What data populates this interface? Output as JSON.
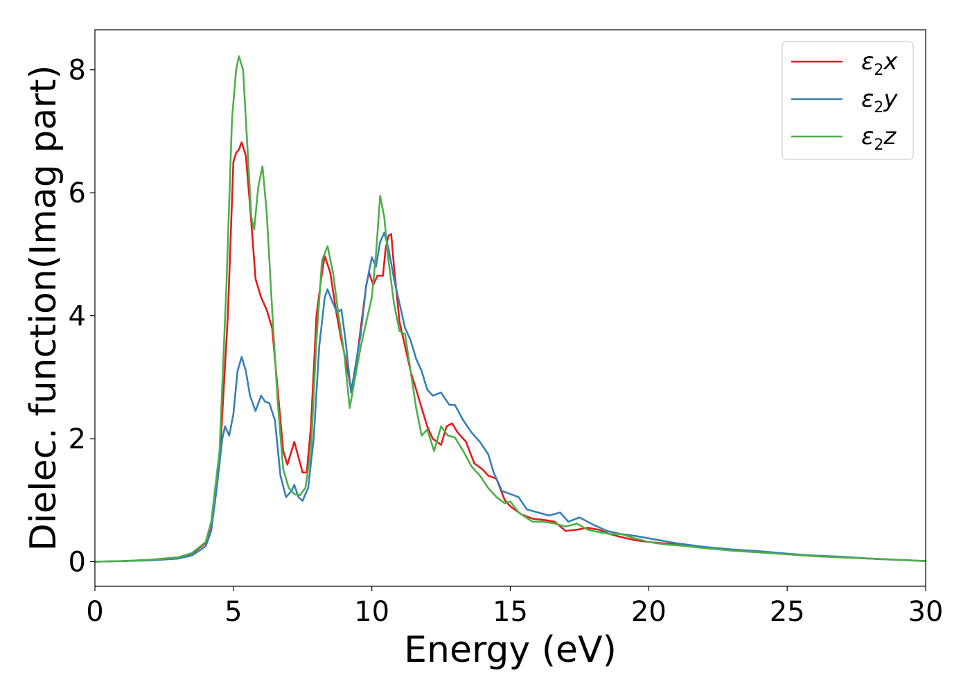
{
  "chart_data": {
    "type": "line",
    "title": "",
    "xlabel": "Energy (eV)",
    "ylabel": "Dielec. function(Imag part)",
    "xlim": [
      0,
      30
    ],
    "ylim": [
      -0.4,
      8.65
    ],
    "xticks": [
      0,
      5,
      10,
      15,
      20,
      25,
      30
    ],
    "yticks": [
      0,
      2,
      4,
      6,
      8
    ],
    "grid": false,
    "legend_position": "top-right",
    "series": [
      {
        "name": "ε2x",
        "name_base": "ε",
        "name_sub": "2",
        "name_axis": "x",
        "color": "#e41a1c",
        "points": [
          [
            0,
            0.0
          ],
          [
            1,
            0.01
          ],
          [
            2,
            0.03
          ],
          [
            3,
            0.07
          ],
          [
            3.5,
            0.13
          ],
          [
            4.0,
            0.3
          ],
          [
            4.2,
            0.6
          ],
          [
            4.5,
            1.6
          ],
          [
            4.8,
            4.0
          ],
          [
            5.0,
            6.5
          ],
          [
            5.1,
            6.65
          ],
          [
            5.2,
            6.7
          ],
          [
            5.3,
            6.82
          ],
          [
            5.45,
            6.6
          ],
          [
            5.6,
            5.8
          ],
          [
            5.8,
            4.6
          ],
          [
            6.0,
            4.3
          ],
          [
            6.2,
            4.1
          ],
          [
            6.4,
            3.8
          ],
          [
            6.6,
            2.8
          ],
          [
            6.8,
            1.8
          ],
          [
            6.95,
            1.58
          ],
          [
            7.1,
            1.8
          ],
          [
            7.2,
            1.95
          ],
          [
            7.35,
            1.7
          ],
          [
            7.5,
            1.45
          ],
          [
            7.65,
            1.45
          ],
          [
            7.8,
            2.2
          ],
          [
            8.0,
            4.0
          ],
          [
            8.2,
            4.7
          ],
          [
            8.3,
            4.97
          ],
          [
            8.5,
            4.7
          ],
          [
            8.7,
            4.1
          ],
          [
            8.9,
            3.6
          ],
          [
            9.05,
            3.3
          ],
          [
            9.25,
            2.8
          ],
          [
            9.4,
            3.1
          ],
          [
            9.6,
            3.8
          ],
          [
            9.8,
            4.5
          ],
          [
            9.9,
            4.7
          ],
          [
            10.05,
            4.5
          ],
          [
            10.2,
            4.65
          ],
          [
            10.4,
            4.65
          ],
          [
            10.5,
            5.1
          ],
          [
            10.6,
            5.3
          ],
          [
            10.7,
            5.33
          ],
          [
            10.8,
            4.8
          ],
          [
            11.0,
            3.9
          ],
          [
            11.2,
            3.5
          ],
          [
            11.4,
            3.1
          ],
          [
            11.6,
            2.8
          ],
          [
            11.8,
            2.5
          ],
          [
            12.0,
            2.2
          ],
          [
            12.2,
            2.0
          ],
          [
            12.5,
            1.9
          ],
          [
            12.7,
            2.2
          ],
          [
            12.9,
            2.25
          ],
          [
            13.1,
            2.1
          ],
          [
            13.4,
            1.95
          ],
          [
            13.7,
            1.6
          ],
          [
            14.0,
            1.5
          ],
          [
            14.2,
            1.4
          ],
          [
            14.5,
            1.35
          ],
          [
            14.8,
            1.0
          ],
          [
            15.0,
            0.9
          ],
          [
            15.4,
            0.77
          ],
          [
            15.8,
            0.7
          ],
          [
            16.2,
            0.68
          ],
          [
            16.6,
            0.65
          ],
          [
            17.0,
            0.5
          ],
          [
            17.4,
            0.52
          ],
          [
            17.8,
            0.55
          ],
          [
            18.2,
            0.52
          ],
          [
            18.6,
            0.45
          ],
          [
            19.0,
            0.4
          ],
          [
            19.5,
            0.35
          ],
          [
            20.0,
            0.32
          ],
          [
            21,
            0.28
          ],
          [
            22,
            0.23
          ],
          [
            23,
            0.19
          ],
          [
            24,
            0.16
          ],
          [
            25,
            0.12
          ],
          [
            26,
            0.09
          ],
          [
            27,
            0.07
          ],
          [
            28,
            0.05
          ],
          [
            29,
            0.03
          ],
          [
            30,
            0.01
          ]
        ]
      },
      {
        "name": "ε2y",
        "name_base": "ε",
        "name_sub": "2",
        "name_axis": "y",
        "color": "#377eb8",
        "points": [
          [
            0,
            0.0
          ],
          [
            1,
            0.01
          ],
          [
            2,
            0.02
          ],
          [
            3,
            0.05
          ],
          [
            3.5,
            0.1
          ],
          [
            4.0,
            0.25
          ],
          [
            4.2,
            0.5
          ],
          [
            4.4,
            1.2
          ],
          [
            4.6,
            2.0
          ],
          [
            4.7,
            2.2
          ],
          [
            4.85,
            2.05
          ],
          [
            5.0,
            2.4
          ],
          [
            5.15,
            3.1
          ],
          [
            5.3,
            3.33
          ],
          [
            5.45,
            3.1
          ],
          [
            5.6,
            2.7
          ],
          [
            5.8,
            2.45
          ],
          [
            6.0,
            2.7
          ],
          [
            6.15,
            2.6
          ],
          [
            6.3,
            2.58
          ],
          [
            6.5,
            2.3
          ],
          [
            6.7,
            1.4
          ],
          [
            6.9,
            1.05
          ],
          [
            7.1,
            1.15
          ],
          [
            7.2,
            1.25
          ],
          [
            7.35,
            1.05
          ],
          [
            7.5,
            0.99
          ],
          [
            7.7,
            1.2
          ],
          [
            7.9,
            2.0
          ],
          [
            8.1,
            3.5
          ],
          [
            8.3,
            4.3
          ],
          [
            8.4,
            4.43
          ],
          [
            8.6,
            4.2
          ],
          [
            8.75,
            4.05
          ],
          [
            8.9,
            4.1
          ],
          [
            9.05,
            3.6
          ],
          [
            9.25,
            2.75
          ],
          [
            9.45,
            3.3
          ],
          [
            9.6,
            3.7
          ],
          [
            9.8,
            4.5
          ],
          [
            10.0,
            4.95
          ],
          [
            10.15,
            4.8
          ],
          [
            10.3,
            5.2
          ],
          [
            10.45,
            5.35
          ],
          [
            10.6,
            5.1
          ],
          [
            10.8,
            4.6
          ],
          [
            11.0,
            4.2
          ],
          [
            11.2,
            3.8
          ],
          [
            11.4,
            3.6
          ],
          [
            11.6,
            3.3
          ],
          [
            11.8,
            3.1
          ],
          [
            12.0,
            2.8
          ],
          [
            12.2,
            2.7
          ],
          [
            12.5,
            2.75
          ],
          [
            12.8,
            2.55
          ],
          [
            13.0,
            2.55
          ],
          [
            13.3,
            2.3
          ],
          [
            13.6,
            2.1
          ],
          [
            13.9,
            1.95
          ],
          [
            14.2,
            1.75
          ],
          [
            14.4,
            1.45
          ],
          [
            14.7,
            1.15
          ],
          [
            15.0,
            1.1
          ],
          [
            15.3,
            1.05
          ],
          [
            15.6,
            0.85
          ],
          [
            16.0,
            0.8
          ],
          [
            16.4,
            0.75
          ],
          [
            16.8,
            0.8
          ],
          [
            17.1,
            0.65
          ],
          [
            17.5,
            0.72
          ],
          [
            18.0,
            0.6
          ],
          [
            18.5,
            0.5
          ],
          [
            19.0,
            0.45
          ],
          [
            19.5,
            0.42
          ],
          [
            20.0,
            0.38
          ],
          [
            21,
            0.3
          ],
          [
            22,
            0.24
          ],
          [
            23,
            0.2
          ],
          [
            24,
            0.17
          ],
          [
            25,
            0.13
          ],
          [
            26,
            0.1
          ],
          [
            27,
            0.08
          ],
          [
            28,
            0.05
          ],
          [
            29,
            0.03
          ],
          [
            30,
            0.01
          ]
        ]
      },
      {
        "name": "ε2z",
        "name_base": "ε",
        "name_sub": "2",
        "name_axis": "z",
        "color": "#4daf4a",
        "points": [
          [
            0,
            0.0
          ],
          [
            1,
            0.01
          ],
          [
            2,
            0.03
          ],
          [
            3,
            0.07
          ],
          [
            3.5,
            0.14
          ],
          [
            4.0,
            0.32
          ],
          [
            4.2,
            0.65
          ],
          [
            4.5,
            1.8
          ],
          [
            4.75,
            4.5
          ],
          [
            4.95,
            7.2
          ],
          [
            5.1,
            8.0
          ],
          [
            5.2,
            8.22
          ],
          [
            5.35,
            8.0
          ],
          [
            5.5,
            6.8
          ],
          [
            5.65,
            5.6
          ],
          [
            5.75,
            5.4
          ],
          [
            5.9,
            6.1
          ],
          [
            6.05,
            6.43
          ],
          [
            6.2,
            5.7
          ],
          [
            6.4,
            4.1
          ],
          [
            6.6,
            2.6
          ],
          [
            6.8,
            1.5
          ],
          [
            7.0,
            1.2
          ],
          [
            7.2,
            1.1
          ],
          [
            7.4,
            1.08
          ],
          [
            7.6,
            1.2
          ],
          [
            7.8,
            1.8
          ],
          [
            8.0,
            3.6
          ],
          [
            8.2,
            4.9
          ],
          [
            8.4,
            5.13
          ],
          [
            8.6,
            4.7
          ],
          [
            8.8,
            4.0
          ],
          [
            9.0,
            3.4
          ],
          [
            9.2,
            2.5
          ],
          [
            9.4,
            3.0
          ],
          [
            9.6,
            3.5
          ],
          [
            9.8,
            3.9
          ],
          [
            10.0,
            4.3
          ],
          [
            10.15,
            5.0
          ],
          [
            10.3,
            5.95
          ],
          [
            10.45,
            5.6
          ],
          [
            10.6,
            4.9
          ],
          [
            10.8,
            4.2
          ],
          [
            11.0,
            3.75
          ],
          [
            11.2,
            3.7
          ],
          [
            11.4,
            3.1
          ],
          [
            11.6,
            2.5
          ],
          [
            11.8,
            2.05
          ],
          [
            12.0,
            2.15
          ],
          [
            12.25,
            1.8
          ],
          [
            12.5,
            2.2
          ],
          [
            12.75,
            2.05
          ],
          [
            13.0,
            2.02
          ],
          [
            13.3,
            1.8
          ],
          [
            13.6,
            1.55
          ],
          [
            13.9,
            1.4
          ],
          [
            14.2,
            1.2
          ],
          [
            14.5,
            1.05
          ],
          [
            14.8,
            0.95
          ],
          [
            15.0,
            0.98
          ],
          [
            15.3,
            0.8
          ],
          [
            15.8,
            0.65
          ],
          [
            16.2,
            0.65
          ],
          [
            16.6,
            0.62
          ],
          [
            17.0,
            0.57
          ],
          [
            17.4,
            0.62
          ],
          [
            17.8,
            0.52
          ],
          [
            18.2,
            0.48
          ],
          [
            18.6,
            0.45
          ],
          [
            19.0,
            0.45
          ],
          [
            19.5,
            0.38
          ],
          [
            20.0,
            0.32
          ],
          [
            20.6,
            0.28
          ],
          [
            21.2,
            0.26
          ],
          [
            22,
            0.22
          ],
          [
            23,
            0.18
          ],
          [
            24,
            0.15
          ],
          [
            25,
            0.12
          ],
          [
            26,
            0.09
          ],
          [
            27,
            0.07
          ],
          [
            28,
            0.05
          ],
          [
            29,
            0.03
          ],
          [
            30,
            0.01
          ]
        ]
      }
    ]
  }
}
